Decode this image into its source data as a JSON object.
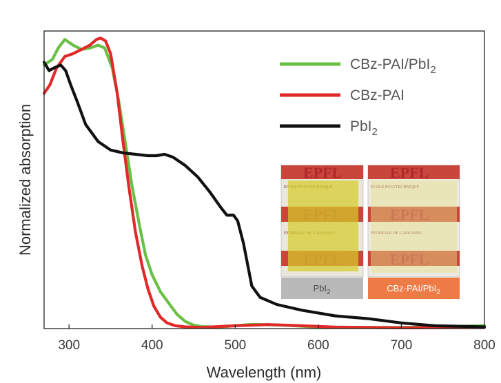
{
  "chart_data": {
    "type": "line",
    "xlabel": "Wavelength (nm)",
    "ylabel": "Normalized absorption",
    "xlim": [
      270,
      800
    ],
    "ylim": [
      0,
      1.05
    ],
    "xticks": [
      300,
      400,
      500,
      600,
      700,
      800
    ],
    "grid": false,
    "legend_position": "top-right",
    "series": [
      {
        "name": "CBz-PAI/PbI",
        "name_sub": "2",
        "color": "#6abf45",
        "points": [
          [
            270,
            0.93
          ],
          [
            280,
            0.95
          ],
          [
            287,
            0.99
          ],
          [
            295,
            1.02
          ],
          [
            305,
            1.0
          ],
          [
            315,
            0.985
          ],
          [
            325,
            0.99
          ],
          [
            335,
            1.0
          ],
          [
            343,
            0.99
          ],
          [
            352,
            0.92
          ],
          [
            360,
            0.8
          ],
          [
            368,
            0.65
          ],
          [
            376,
            0.5
          ],
          [
            385,
            0.36
          ],
          [
            392,
            0.26
          ],
          [
            400,
            0.19
          ],
          [
            410,
            0.13
          ],
          [
            420,
            0.09
          ],
          [
            430,
            0.05
          ],
          [
            440,
            0.025
          ],
          [
            450,
            0.012
          ],
          [
            460,
            0.007
          ],
          [
            480,
            0.005
          ],
          [
            520,
            0.015
          ],
          [
            560,
            0.012
          ],
          [
            600,
            0.005
          ],
          [
            700,
            0.004
          ],
          [
            800,
            0.01
          ]
        ]
      },
      {
        "name": "CBz-PAI",
        "name_sub": "",
        "color": "#e02a2a",
        "points": [
          [
            270,
            0.83
          ],
          [
            277,
            0.86
          ],
          [
            285,
            0.92
          ],
          [
            295,
            0.96
          ],
          [
            305,
            0.97
          ],
          [
            315,
            0.985
          ],
          [
            325,
            1.0
          ],
          [
            333,
            1.02
          ],
          [
            338,
            1.025
          ],
          [
            344,
            1.015
          ],
          [
            350,
            0.97
          ],
          [
            358,
            0.83
          ],
          [
            365,
            0.66
          ],
          [
            372,
            0.5
          ],
          [
            380,
            0.34
          ],
          [
            388,
            0.22
          ],
          [
            395,
            0.14
          ],
          [
            402,
            0.08
          ],
          [
            410,
            0.04
          ],
          [
            418,
            0.02
          ],
          [
            428,
            0.01
          ],
          [
            440,
            0.006
          ],
          [
            460,
            0.004
          ],
          [
            500,
            0.01
          ],
          [
            540,
            0.014
          ],
          [
            580,
            0.01
          ],
          [
            620,
            0.005
          ],
          [
            700,
            0.003
          ],
          [
            800,
            0.004
          ]
        ]
      },
      {
        "name": "PbI",
        "name_sub": "2",
        "color": "#111111",
        "points": [
          [
            270,
            0.94
          ],
          [
            276,
            0.91
          ],
          [
            282,
            0.92
          ],
          [
            290,
            0.93
          ],
          [
            296,
            0.91
          ],
          [
            302,
            0.86
          ],
          [
            310,
            0.8
          ],
          [
            320,
            0.72
          ],
          [
            335,
            0.66
          ],
          [
            350,
            0.63
          ],
          [
            365,
            0.62
          ],
          [
            380,
            0.615
          ],
          [
            395,
            0.61
          ],
          [
            405,
            0.61
          ],
          [
            415,
            0.615
          ],
          [
            425,
            0.605
          ],
          [
            440,
            0.575
          ],
          [
            455,
            0.535
          ],
          [
            470,
            0.48
          ],
          [
            482,
            0.43
          ],
          [
            490,
            0.4
          ],
          [
            498,
            0.4
          ],
          [
            503,
            0.38
          ],
          [
            510,
            0.3
          ],
          [
            520,
            0.15
          ],
          [
            530,
            0.11
          ],
          [
            550,
            0.085
          ],
          [
            580,
            0.065
          ],
          [
            620,
            0.045
          ],
          [
            660,
            0.035
          ],
          [
            700,
            0.02
          ],
          [
            740,
            0.01
          ],
          [
            800,
            0.006
          ]
        ]
      }
    ]
  },
  "inset": {
    "photo_text": "EPFL",
    "fine_text_1": "ECOLE POLYTECHNIQUE",
    "fine_text_2": "FEDERALE DE LAUSANNE",
    "left_caption": "PbI",
    "left_caption_sub": "2",
    "right_caption": "CBz-PAI/PbI",
    "right_caption_sub": "2",
    "left_caption_bg": "#b9b9b9",
    "right_caption_bg": "#ee7a45"
  }
}
